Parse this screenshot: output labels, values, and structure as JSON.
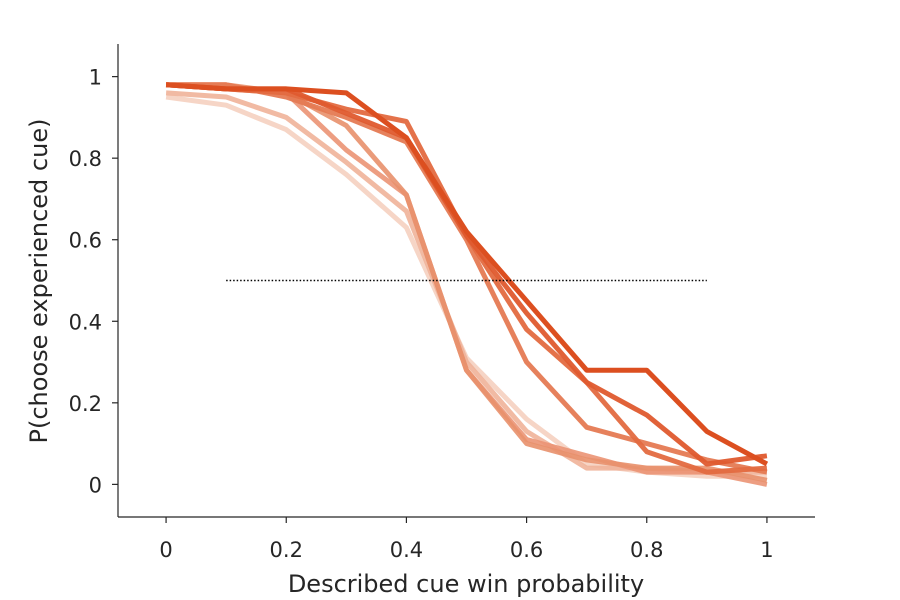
{
  "chart_data": {
    "type": "line",
    "xlabel": "Described cue win probability",
    "ylabel": "P(choose experienced cue)",
    "xlim": [
      -0.08,
      1.08
    ],
    "ylim": [
      -0.08,
      1.08
    ],
    "x_ticks": [
      0,
      0.2,
      0.4,
      0.6,
      0.8,
      1
    ],
    "x_tick_labels": [
      "0",
      "0.2",
      "0.4",
      "0.6",
      "0.8",
      "1"
    ],
    "y_ticks": [
      0,
      0.2,
      0.4,
      0.6,
      0.8,
      1
    ],
    "y_tick_labels": [
      "0",
      "0.2",
      "0.4",
      "0.6",
      "0.8",
      "1"
    ],
    "grid": false,
    "legend": "none",
    "x": [
      0,
      0.1,
      0.2,
      0.3,
      0.4,
      0.5,
      0.6,
      0.7,
      0.8,
      0.9,
      1.0
    ],
    "series": [
      {
        "values": [
          0.95,
          0.93,
          0.87,
          0.76,
          0.63,
          0.31,
          0.16,
          0.05,
          0.03,
          0.02,
          0.02
        ],
        "color": "#f5d0c0",
        "opacity": 0.9
      },
      {
        "values": [
          0.96,
          0.95,
          0.9,
          0.79,
          0.67,
          0.3,
          0.13,
          0.04,
          0.04,
          0.03,
          0.03
        ],
        "color": "#f0b299",
        "opacity": 0.9
      },
      {
        "values": [
          0.98,
          0.97,
          0.96,
          0.82,
          0.71,
          0.28,
          0.11,
          0.07,
          0.03,
          0.03,
          0.0
        ],
        "color": "#eb9474",
        "opacity": 0.9
      },
      {
        "values": [
          0.98,
          0.98,
          0.96,
          0.88,
          0.71,
          0.28,
          0.1,
          0.06,
          0.04,
          0.04,
          0.01
        ],
        "color": "#e8906c",
        "opacity": 0.9
      },
      {
        "values": [
          0.98,
          0.98,
          0.95,
          0.9,
          0.84,
          0.6,
          0.3,
          0.14,
          0.1,
          0.06,
          0.03
        ],
        "color": "#e57a53",
        "opacity": 0.95
      },
      {
        "values": [
          0.98,
          0.97,
          0.96,
          0.92,
          0.89,
          0.61,
          0.38,
          0.25,
          0.08,
          0.03,
          0.04
        ],
        "color": "#e36a40",
        "opacity": 0.95
      },
      {
        "values": [
          0.98,
          0.97,
          0.97,
          0.91,
          0.85,
          0.61,
          0.42,
          0.25,
          0.17,
          0.05,
          0.07
        ],
        "color": "#df5a2e",
        "opacity": 0.95
      },
      {
        "values": [
          0.98,
          0.97,
          0.97,
          0.96,
          0.85,
          0.62,
          0.45,
          0.28,
          0.28,
          0.13,
          0.05
        ],
        "color": "#dc4f20",
        "opacity": 1.0
      }
    ],
    "reference_line": {
      "x": [
        0.1,
        0.9
      ],
      "y": 0.5,
      "style": "dotted",
      "color": "#000000"
    }
  }
}
